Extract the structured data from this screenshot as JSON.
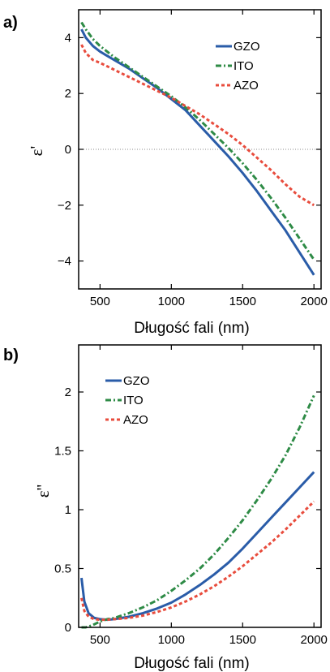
{
  "chart_data": [
    {
      "type": "line",
      "panel_label": "a)",
      "xlabel": "Długość fali (nm)",
      "ylabel": "ε'",
      "xlim": [
        350,
        2050
      ],
      "ylim": [
        -5,
        5
      ],
      "xticks": [
        500,
        1000,
        1500,
        2000
      ],
      "yticks": [
        -4,
        -2,
        0,
        2,
        4
      ],
      "zero_line": true,
      "legend_position": "top-right",
      "series": [
        {
          "name": "GZO",
          "color": "#2a5ca8",
          "dash": "solid",
          "x": [
            370,
            400,
            450,
            500,
            600,
            700,
            800,
            900,
            1000,
            1100,
            1200,
            1300,
            1400,
            1500,
            1600,
            1700,
            1800,
            1900,
            2000
          ],
          "y": [
            4.3,
            4.0,
            3.7,
            3.5,
            3.2,
            2.9,
            2.55,
            2.2,
            1.8,
            1.4,
            0.85,
            0.3,
            -0.25,
            -0.85,
            -1.5,
            -2.2,
            -2.9,
            -3.7,
            -4.5
          ]
        },
        {
          "name": "ITO",
          "color": "#2e8b46",
          "dash": "dashdot",
          "x": [
            370,
            400,
            450,
            500,
            600,
            700,
            800,
            900,
            1000,
            1100,
            1200,
            1300,
            1400,
            1500,
            1600,
            1700,
            1800,
            1900,
            2000
          ],
          "y": [
            4.55,
            4.3,
            3.95,
            3.7,
            3.3,
            2.95,
            2.6,
            2.25,
            1.9,
            1.5,
            1.05,
            0.55,
            0.05,
            -0.5,
            -1.1,
            -1.75,
            -2.45,
            -3.2,
            -3.95
          ]
        },
        {
          "name": "AZO",
          "color": "#e84c3d",
          "dash": "dotted",
          "x": [
            370,
            400,
            450,
            500,
            600,
            700,
            800,
            900,
            1000,
            1100,
            1200,
            1300,
            1400,
            1500,
            1600,
            1700,
            1800,
            1900,
            2000
          ],
          "y": [
            3.75,
            3.45,
            3.2,
            3.1,
            2.85,
            2.6,
            2.35,
            2.1,
            1.85,
            1.55,
            1.25,
            0.9,
            0.55,
            0.15,
            -0.3,
            -0.75,
            -1.25,
            -1.7,
            -2.0
          ]
        }
      ]
    },
    {
      "type": "line",
      "panel_label": "b)",
      "xlabel": "Długość fali (nm)",
      "ylabel": "ε''",
      "xlim": [
        350,
        2050
      ],
      "ylim": [
        0,
        2.4
      ],
      "xticks": [
        500,
        1000,
        1500,
        2000
      ],
      "yticks": [
        0,
        0.5,
        1,
        1.5,
        2
      ],
      "ytick_labels": [
        "0",
        "0.5",
        "1",
        "1.5",
        "2"
      ],
      "zero_line": false,
      "legend_position": "top-left",
      "series": [
        {
          "name": "GZO",
          "color": "#2a5ca8",
          "dash": "solid",
          "x": [
            370,
            390,
            420,
            460,
            500,
            550,
            600,
            700,
            800,
            900,
            1000,
            1100,
            1200,
            1300,
            1400,
            1500,
            1600,
            1700,
            1800,
            1900,
            2000
          ],
          "y": [
            0.42,
            0.22,
            0.12,
            0.08,
            0.07,
            0.065,
            0.07,
            0.09,
            0.12,
            0.16,
            0.21,
            0.28,
            0.36,
            0.45,
            0.55,
            0.67,
            0.8,
            0.93,
            1.06,
            1.19,
            1.32
          ]
        },
        {
          "name": "ITO",
          "color": "#2e8b46",
          "dash": "dashdot",
          "x": [
            370,
            400,
            450,
            500,
            550,
            600,
            700,
            800,
            900,
            1000,
            1100,
            1200,
            1300,
            1400,
            1500,
            1600,
            1700,
            1800,
            1900,
            2000
          ],
          "y": [
            0.0,
            0.0,
            0.02,
            0.05,
            0.07,
            0.08,
            0.12,
            0.17,
            0.23,
            0.31,
            0.4,
            0.5,
            0.62,
            0.76,
            0.91,
            1.08,
            1.26,
            1.46,
            1.7,
            1.97
          ]
        },
        {
          "name": "AZO",
          "color": "#e84c3d",
          "dash": "dotted",
          "x": [
            370,
            390,
            420,
            460,
            500,
            550,
            600,
            700,
            800,
            900,
            1000,
            1100,
            1200,
            1300,
            1400,
            1500,
            1600,
            1700,
            1800,
            1900,
            2000
          ],
          "y": [
            0.25,
            0.14,
            0.09,
            0.07,
            0.065,
            0.065,
            0.07,
            0.08,
            0.1,
            0.13,
            0.17,
            0.22,
            0.28,
            0.35,
            0.43,
            0.52,
            0.62,
            0.72,
            0.83,
            0.95,
            1.07
          ]
        }
      ]
    }
  ]
}
